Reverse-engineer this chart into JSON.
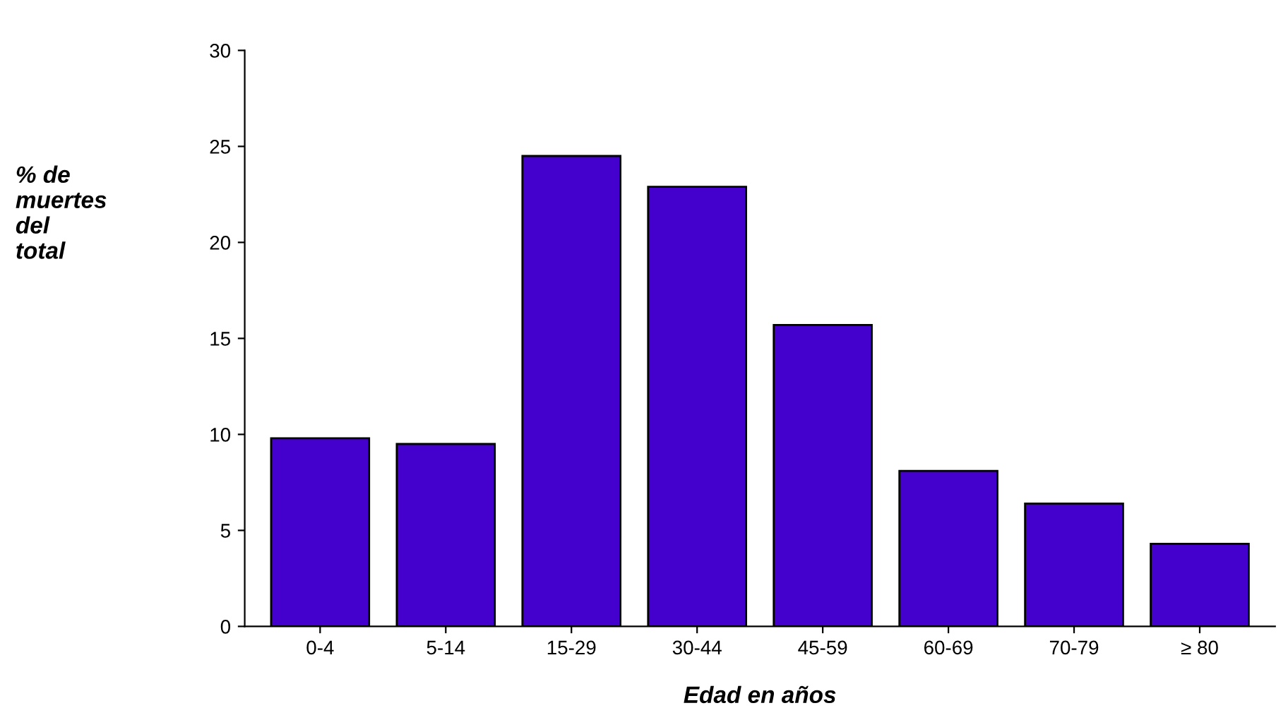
{
  "chart_data": {
    "type": "bar",
    "xlabel": "Edad en años",
    "ylabel": "% de\nmuertes\ndel\ntotal",
    "categories": [
      "0-4",
      "5-14",
      "15-29",
      "30-44",
      "45-59",
      "60-69",
      "70-79",
      "≥ 80"
    ],
    "values": [
      9.8,
      9.5,
      24.5,
      22.9,
      15.7,
      8.1,
      6.4,
      4.3
    ],
    "color": "#4400cc",
    "ylim": [
      0,
      30
    ],
    "yticks": [
      0,
      5,
      10,
      15,
      20,
      25,
      30
    ],
    "grid": false
  }
}
